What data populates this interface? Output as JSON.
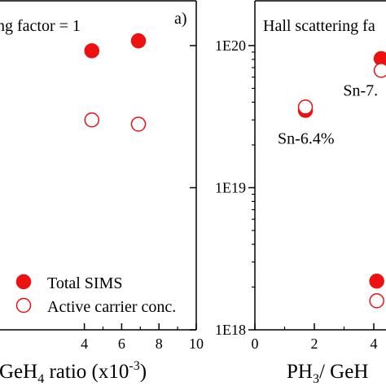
{
  "chart_data": [
    {
      "type": "scatter",
      "panel_label": "a)",
      "annotation": "ng factor = 1",
      "xlabel_main": "GeH",
      "xlabel_sub": "4",
      "xlabel_tail": " ratio (x10",
      "xlabel_sup": "-3",
      "xlabel_close": ")",
      "xlim": [
        0,
        10
      ],
      "ylim_log10": [
        18,
        20.25
      ],
      "xticks": [
        {
          "value": 4,
          "label": "4"
        },
        {
          "value": 6,
          "label": "6"
        },
        {
          "value": 8,
          "label": "8"
        },
        {
          "value": 10,
          "label": "10"
        }
      ],
      "series": [
        {
          "name": "Total SIMS",
          "marker": "filled",
          "x": [
            4.4,
            6.9
          ],
          "y": [
            9.2e+19,
            1.08e+20
          ]
        },
        {
          "name": "Active carrier conc.",
          "marker": "open",
          "x": [
            4.4,
            6.9
          ],
          "y": [
            3e+19,
            2.8e+19
          ]
        }
      ],
      "legend": {
        "placement": "bottom-left"
      }
    },
    {
      "type": "scatter",
      "annotation": "Hall scattering fa",
      "xlabel_main": "PH",
      "xlabel_sub": "3",
      "xlabel_tail": "/ GeH",
      "xlim": [
        0,
        4.4
      ],
      "ylim_log10": [
        18,
        20.25
      ],
      "yticks": [
        {
          "value": 1e+18,
          "label": "1E18"
        },
        {
          "value": 1e+19,
          "label": "1E19"
        },
        {
          "value": 1e+20,
          "label": "1E20"
        }
      ],
      "xticks": [
        {
          "value": 0,
          "label": "0"
        },
        {
          "value": 2,
          "label": "2"
        },
        {
          "value": 4,
          "label": "4"
        }
      ],
      "series": [
        {
          "marker": "filled",
          "x": [
            1.7,
            4.25,
            4.1
          ],
          "y": [
            3.5e+19,
            8.1e+19,
            2.2e+18
          ]
        },
        {
          "marker": "open",
          "x": [
            1.7,
            4.25,
            4.1
          ],
          "y": [
            3.7e+19,
            6.7e+19,
            1.6e+18
          ]
        }
      ],
      "point_labels": [
        {
          "text": "Sn-6.4%",
          "x": 1.7,
          "y": 2.2e+19
        },
        {
          "text": "Sn-7.",
          "x": 3.9,
          "y": 4.8e+19
        }
      ]
    }
  ],
  "colors": {
    "marker": "#ee1111",
    "axis": "#000000"
  }
}
